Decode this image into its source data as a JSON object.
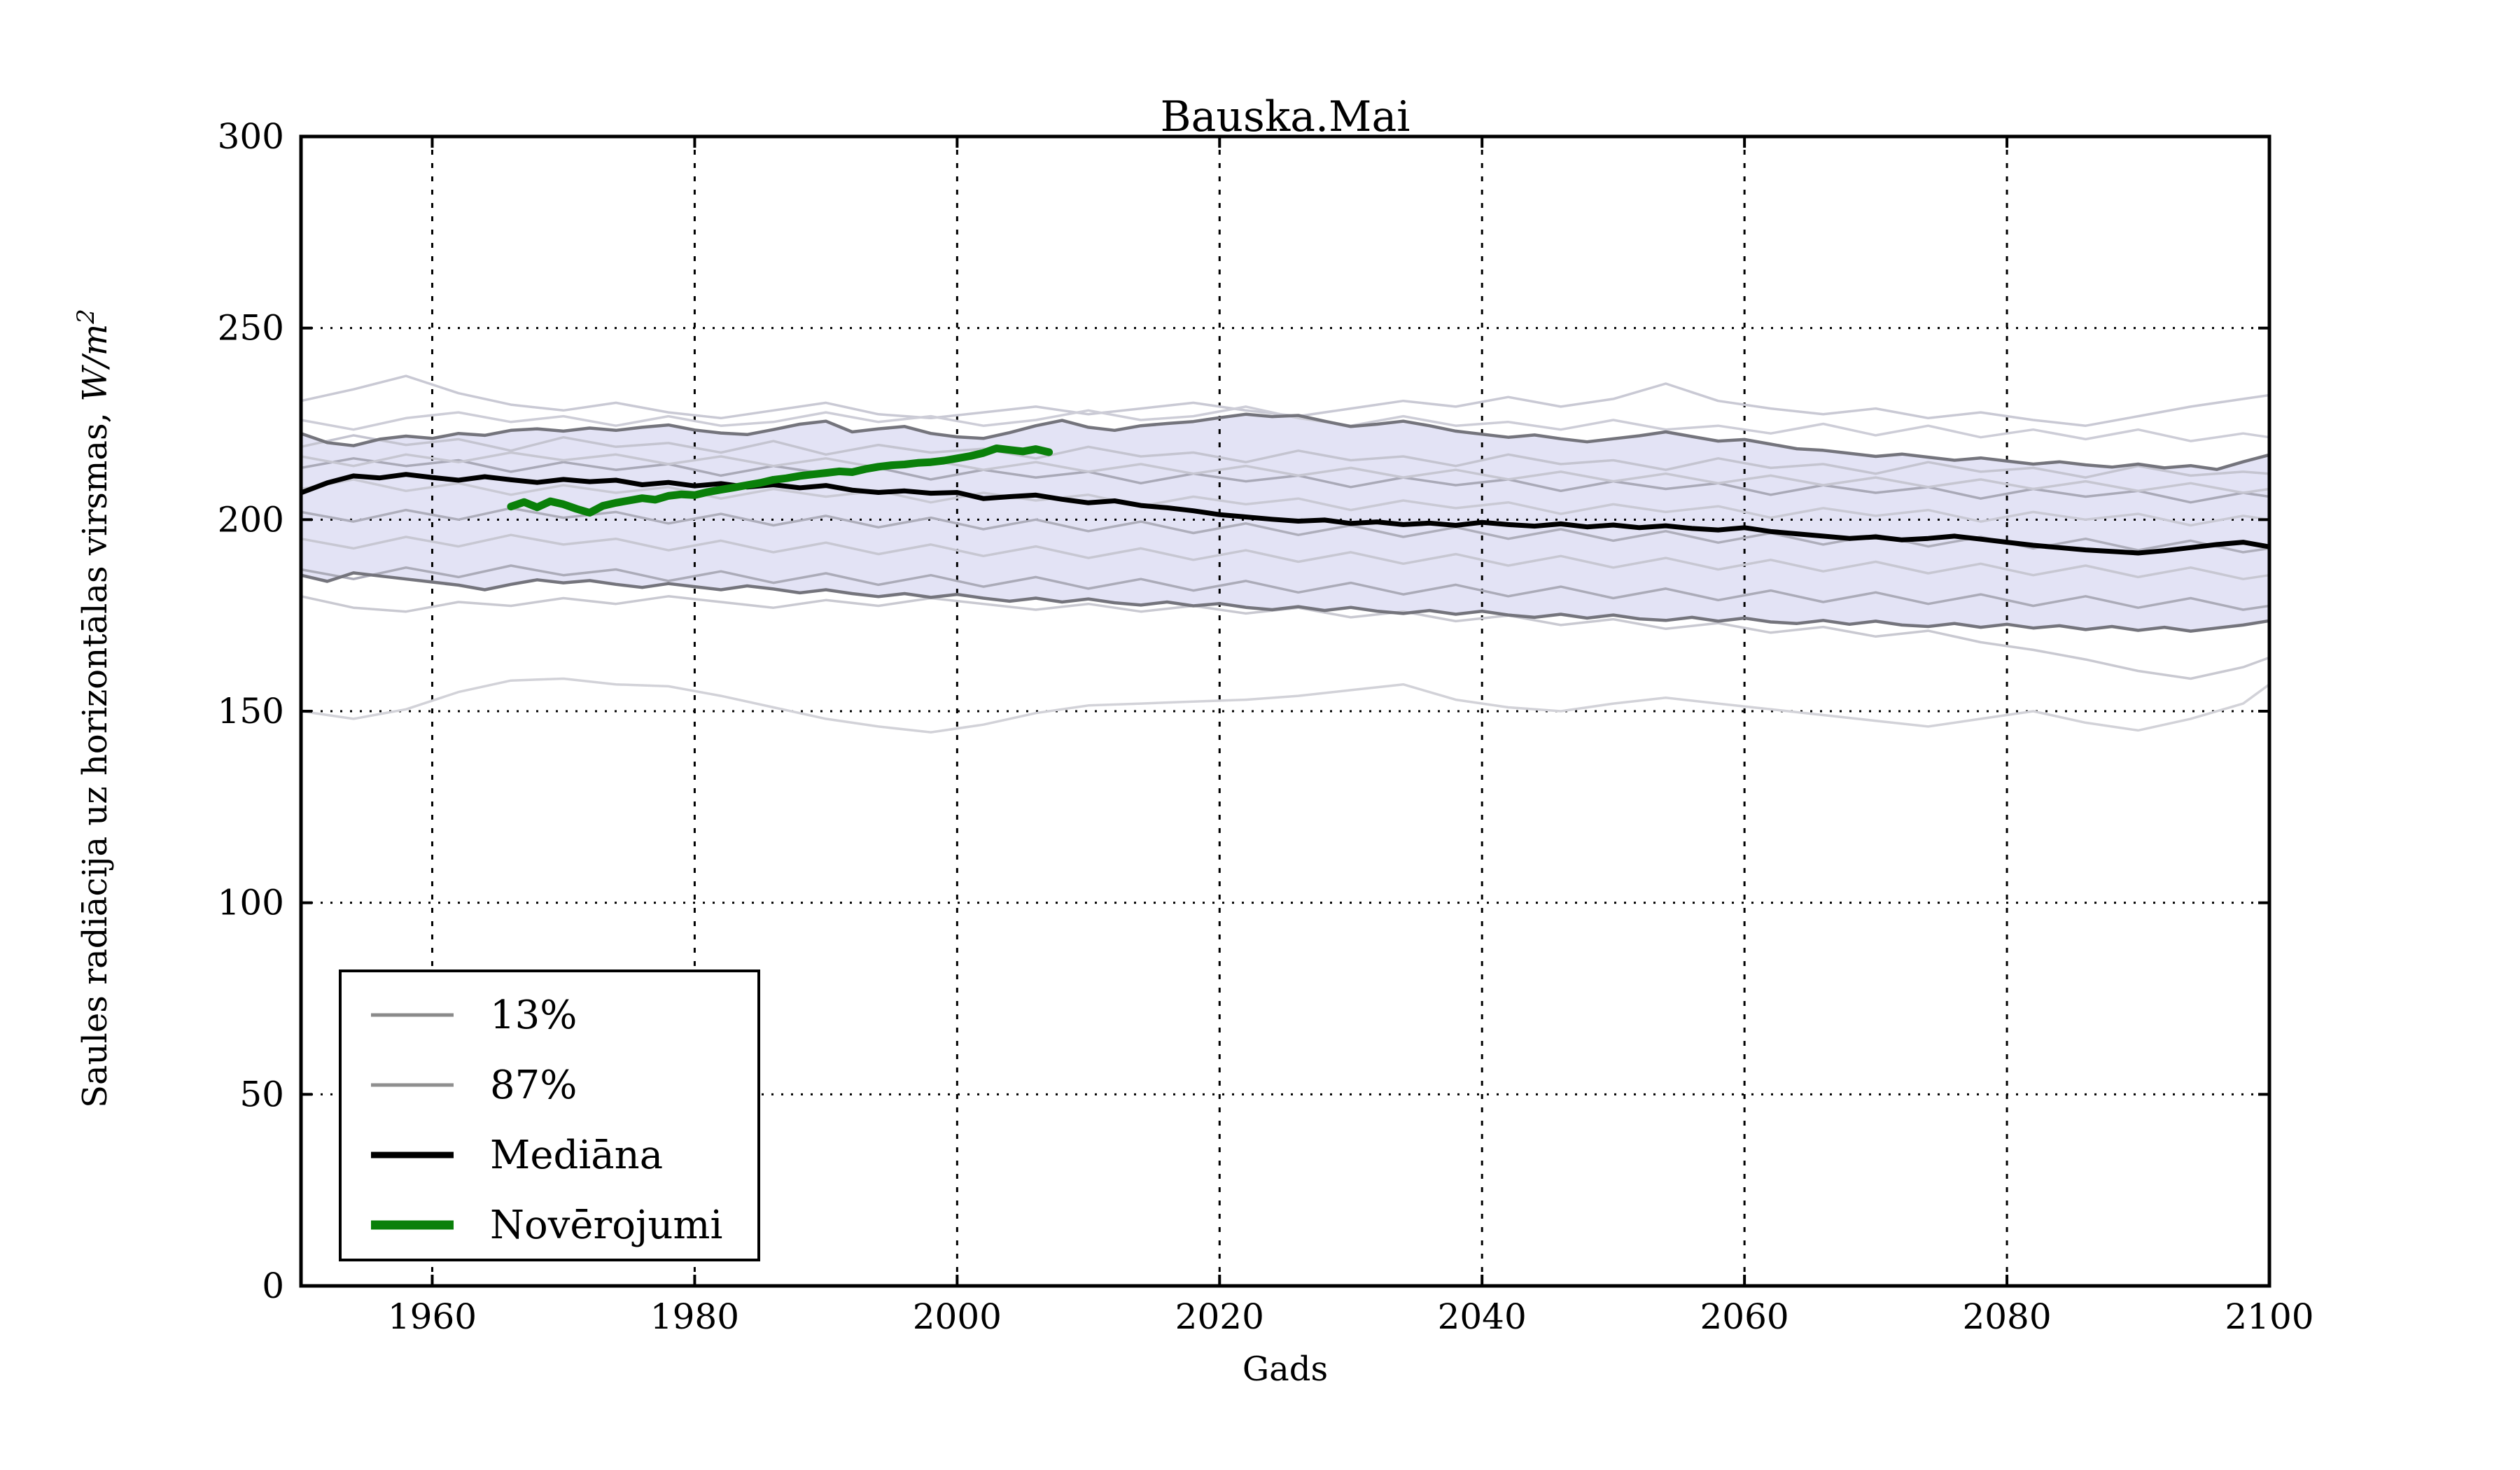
{
  "figure": {
    "title": "Bauska.Mai"
  },
  "axes": {
    "xlabel": "Gads",
    "ylabel_prefix": "Saules radiācija uz horizontālas virsmas, ",
    "ylabel_math": "W/m",
    "ylabel_sup": "2",
    "x": {
      "min": 1950,
      "max": 2100,
      "ticks": [
        1960,
        1980,
        2000,
        2020,
        2040,
        2060,
        2080,
        2100
      ]
    },
    "y": {
      "min": 0,
      "max": 300,
      "ticks": [
        0,
        50,
        100,
        150,
        200,
        250,
        300
      ]
    }
  },
  "legend": {
    "entries": [
      {
        "label": "13%",
        "color": "#8a8a8a",
        "lw": 5
      },
      {
        "label": "87%",
        "color": "#8f8f8f",
        "lw": 5
      },
      {
        "label": "Mediāna",
        "color": "#000000",
        "lw": 9
      },
      {
        "label": "Novērojumi",
        "color": "#0a800a",
        "lw": 13
      }
    ]
  },
  "chart_data": {
    "type": "line",
    "title": "Bauska.Mai",
    "xlabel": "Gads",
    "ylabel": "Saules radiācija uz horizontālas virsmas, W/m²",
    "xlim": [
      1950,
      2100
    ],
    "ylim": [
      0,
      300
    ],
    "grid": true,
    "legend_position": "lower left",
    "band": {
      "fill": "#e3e3f5",
      "edge_color": "#74747c",
      "edge_width": 4.5,
      "x_start": 1950,
      "x_step": 2,
      "upper_87": [
        222.5,
        220.1,
        219.3,
        221.0,
        221.8,
        221.2,
        222.5,
        222.0,
        223.3,
        223.7,
        223.1,
        223.9,
        223.3,
        224.1,
        224.7,
        223.4,
        222.6,
        222.2,
        223.5,
        224.9,
        225.7,
        222.9,
        223.7,
        224.3,
        222.5,
        221.6,
        221.2,
        222.7,
        224.5,
        225.9,
        224.1,
        223.3,
        224.5,
        225.1,
        225.6,
        226.6,
        227.5,
        226.9,
        227.2,
        225.7,
        224.3,
        224.9,
        225.7,
        224.5,
        223.1,
        222.3,
        221.5,
        222.1,
        221.1,
        220.3,
        221.1,
        221.9,
        222.9,
        221.7,
        220.5,
        220.9,
        219.7,
        218.5,
        218.1,
        217.3,
        216.5,
        217.1,
        216.3,
        215.5,
        216.1,
        215.3,
        214.5,
        215.1,
        214.3,
        213.7,
        214.5,
        213.5,
        214.1,
        213.1,
        215.1,
        216.9
      ],
      "lower_13": [
        185.5,
        183.9,
        186.1,
        185.3,
        184.5,
        183.7,
        182.9,
        181.7,
        183.1,
        184.3,
        183.5,
        184.1,
        183.1,
        182.3,
        183.3,
        182.5,
        181.7,
        182.7,
        181.9,
        180.9,
        181.7,
        180.7,
        179.9,
        180.7,
        179.7,
        180.5,
        179.5,
        178.7,
        179.5,
        178.5,
        179.3,
        178.3,
        177.7,
        178.5,
        177.5,
        178.1,
        177.1,
        176.5,
        177.3,
        176.3,
        177.1,
        176.1,
        175.5,
        176.3,
        175.3,
        176.1,
        175.1,
        174.5,
        175.3,
        174.3,
        175.1,
        174.1,
        173.7,
        174.5,
        173.5,
        174.3,
        173.3,
        172.9,
        173.7,
        172.7,
        173.5,
        172.5,
        172.1,
        172.9,
        171.9,
        172.7,
        171.7,
        172.3,
        171.3,
        172.1,
        171.1,
        171.9,
        170.9,
        171.7,
        172.5,
        173.6
      ]
    },
    "median": {
      "name": "Mediāna",
      "color": "#000000",
      "width": 7,
      "x_start": 1950,
      "x_step": 2,
      "values": [
        207.0,
        209.6,
        211.4,
        210.9,
        211.8,
        211.0,
        210.3,
        211.2,
        210.4,
        209.7,
        210.5,
        209.9,
        210.3,
        209.1,
        209.7,
        208.8,
        209.4,
        208.5,
        209.1,
        208.3,
        208.9,
        207.7,
        207.1,
        207.5,
        206.9,
        207.1,
        205.5,
        206.0,
        206.4,
        205.3,
        204.4,
        204.9,
        203.7,
        203.1,
        202.3,
        201.3,
        200.7,
        200.1,
        199.6,
        199.9,
        199.0,
        199.4,
        198.7,
        199.1,
        198.5,
        199.3,
        198.7,
        198.3,
        198.9,
        198.1,
        198.6,
        197.9,
        198.4,
        197.7,
        197.3,
        197.9,
        196.9,
        196.3,
        195.7,
        195.1,
        195.5,
        194.7,
        195.1,
        195.7,
        194.9,
        194.1,
        193.3,
        192.7,
        192.1,
        191.7,
        191.3,
        191.9,
        192.7,
        193.5,
        194.1,
        192.9
      ]
    },
    "observations": {
      "name": "Novērojumi",
      "color": "#0a800a",
      "width": 11,
      "x_start": 1966,
      "x_step": 1,
      "values": [
        203.4,
        204.6,
        203.2,
        204.8,
        204.0,
        202.8,
        201.8,
        203.6,
        204.4,
        205.0,
        205.6,
        205.2,
        206.2,
        206.6,
        206.4,
        207.2,
        207.8,
        208.4,
        209.0,
        209.6,
        210.4,
        210.8,
        211.4,
        211.8,
        212.2,
        212.6,
        212.4,
        213.2,
        213.8,
        214.2,
        214.4,
        214.8,
        215.0,
        215.4,
        216.0,
        216.6,
        217.4,
        218.6,
        218.2,
        217.8,
        218.4,
        217.6
      ]
    },
    "ensemble_members": {
      "x_start": 1950,
      "x_step": 4,
      "x_end": 2100,
      "width": 3.5,
      "lines": [
        {
          "color": "#c9c9d4",
          "values": [
            231,
            234,
            237.5,
            233,
            230,
            228.5,
            230.5,
            228,
            226.5,
            228.5,
            230.5,
            227.5,
            226.5,
            228,
            229.5,
            227.5,
            229,
            230.5,
            228.5,
            227,
            229,
            231,
            229.5,
            232,
            229.5,
            231.5,
            235.5,
            231,
            229,
            227.5,
            229,
            226.5,
            228,
            226,
            224.5,
            227,
            229.5,
            231.5,
            232.5
          ]
        },
        {
          "color": "#cdcdd7",
          "values": [
            226,
            223.5,
            226.5,
            228,
            225.5,
            227,
            224.5,
            227,
            224.5,
            225.5,
            228,
            225.5,
            227,
            224.5,
            226,
            228.5,
            226,
            227,
            229.5,
            226.5,
            224.5,
            227,
            224.5,
            225.5,
            223.5,
            226,
            223.5,
            224.5,
            222.5,
            225,
            222,
            224.5,
            221.5,
            223.5,
            221,
            223.5,
            220.5,
            222.5,
            221.5
          ]
        },
        {
          "color": "#c4c4d0",
          "values": [
            219,
            222,
            219.5,
            221,
            218,
            221.5,
            219,
            220,
            217.5,
            220.5,
            217,
            219.5,
            217.5,
            218.5,
            216,
            219,
            216.5,
            217.5,
            215,
            218,
            215.5,
            216.5,
            214,
            217,
            214.5,
            215.5,
            213,
            216,
            213.5,
            214.5,
            212,
            215,
            212.5,
            213.5,
            211,
            214,
            211.5,
            212.5,
            212
          ]
        },
        {
          "color": "#a9a9b7",
          "values": [
            213.5,
            216,
            214,
            215.5,
            212.5,
            215,
            213,
            214.5,
            211.5,
            214,
            212,
            213.5,
            210.5,
            213,
            211,
            212.5,
            209.5,
            212,
            210,
            211.5,
            208.5,
            211,
            209,
            210.5,
            207.5,
            210,
            208,
            209.5,
            206.5,
            209,
            207,
            208.5,
            205.5,
            208,
            206,
            207.5,
            204.5,
            207,
            206
          ]
        },
        {
          "color": "#c9c9d4",
          "values": [
            208,
            210.5,
            207.5,
            209.5,
            206.5,
            209,
            207,
            208.5,
            205.5,
            208,
            206,
            207.5,
            204.5,
            207,
            205,
            206.5,
            203.5,
            206,
            204,
            205.5,
            202.5,
            205,
            203,
            204.5,
            201.5,
            204,
            202,
            203.5,
            200.5,
            203,
            201,
            202.5,
            199.5,
            202,
            200,
            201.5,
            198.5,
            201,
            200
          ]
        },
        {
          "color": "#aeaebb",
          "values": [
            202,
            199.5,
            202.5,
            200,
            203,
            200.5,
            202,
            199,
            201.5,
            198.5,
            201,
            198,
            200.5,
            197.5,
            200,
            197,
            199.5,
            196.5,
            199,
            196,
            198.5,
            195.5,
            198,
            195,
            197.5,
            194.5,
            197,
            194,
            196.5,
            193.5,
            196,
            193,
            195.5,
            192.5,
            195,
            192,
            194.5,
            191.5,
            192.5
          ]
        },
        {
          "color": "#c7c7d2",
          "values": [
            195,
            192.5,
            195.5,
            193,
            196,
            193.5,
            195,
            192,
            194.5,
            191.5,
            194,
            191,
            193.5,
            190.5,
            193,
            190,
            192.5,
            189.5,
            192,
            189,
            191.5,
            188.5,
            191,
            188,
            190.5,
            187.5,
            190,
            187,
            189.5,
            186.5,
            189,
            186,
            188.5,
            185.5,
            188,
            185,
            187.5,
            184.5,
            185.5
          ]
        },
        {
          "color": "#ababb8",
          "values": [
            187,
            184.5,
            187.5,
            185,
            188,
            185.5,
            187,
            184,
            186.5,
            183.5,
            186,
            183,
            185.5,
            182.5,
            185,
            182,
            184.5,
            181.5,
            184,
            181,
            183.5,
            180.5,
            183,
            180,
            182.5,
            179.5,
            182,
            179,
            181.5,
            178.5,
            181,
            178,
            180.5,
            177.5,
            180,
            177,
            179.5,
            176.5,
            177.5
          ]
        },
        {
          "color": "#c9c9d1",
          "values": [
            180,
            177,
            176,
            178.5,
            177.5,
            179.5,
            178,
            180,
            178.5,
            177,
            179,
            177.5,
            179.5,
            178,
            176.5,
            178,
            176,
            177.5,
            175.5,
            177,
            174.5,
            176,
            173.5,
            175,
            172.5,
            174,
            171.5,
            173,
            170.5,
            172,
            169.5,
            171,
            168,
            166,
            163.5,
            160.5,
            158.5,
            161.5,
            164
          ]
        },
        {
          "color": "#d2d2d8",
          "values": [
            150,
            148,
            150.5,
            155,
            158,
            158.5,
            157,
            156.5,
            154,
            151,
            148,
            146,
            144.5,
            146.5,
            149.5,
            151.5,
            152,
            152.5,
            153,
            154,
            155.5,
            157,
            153,
            151,
            150,
            152,
            153.5,
            152,
            150.5,
            149,
            147.5,
            146,
            148,
            150,
            147,
            145,
            148,
            152,
            157
          ]
        },
        {
          "color": "#c6c6d1",
          "values": [
            216.5,
            214,
            217,
            215,
            217.5,
            215.5,
            217,
            214.5,
            216.5,
            214,
            216,
            213.5,
            215.5,
            213,
            215,
            212.5,
            214.5,
            212,
            214,
            211.5,
            213.5,
            211,
            213,
            210.5,
            212.5,
            210,
            212,
            209.5,
            211.5,
            209,
            211,
            208.5,
            210.5,
            208,
            210,
            207.5,
            209.5,
            207,
            208
          ]
        }
      ]
    }
  }
}
